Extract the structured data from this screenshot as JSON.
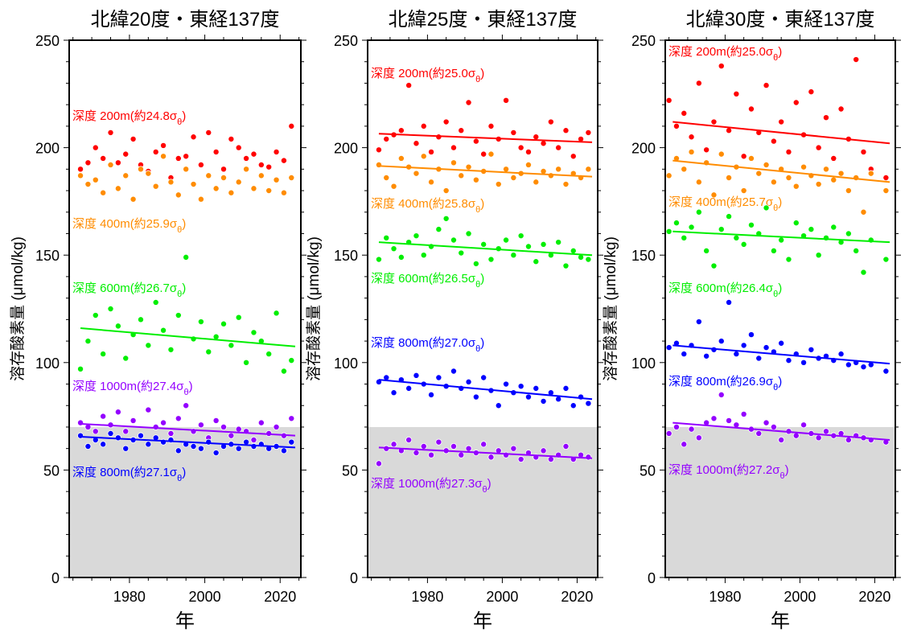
{
  "chart_data": [
    {
      "type": "scatter",
      "title": "北緯20度・東経137度",
      "xlabel": "年",
      "ylabel": "溶存酸素量 (μmol/kg)",
      "xlim": [
        1964,
        2025.5
      ],
      "ylim": [
        0,
        250
      ],
      "xticks": [
        "1980",
        "2000",
        "2020"
      ],
      "yticks": [
        "0",
        "50",
        "100",
        "150",
        "200",
        "250"
      ],
      "shaded_below": 70,
      "x": [
        1967,
        1969,
        1971,
        1973,
        1975,
        1977,
        1979,
        1981,
        1983,
        1985,
        1987,
        1989,
        1991,
        1993,
        1995,
        1997,
        1999,
        2001,
        2003,
        2005,
        2007,
        2009,
        2011,
        2013,
        2015,
        2017,
        2019,
        2021,
        2023
      ],
      "series": [
        {
          "label_pre": "深度 200m(約24.8σ",
          "label_sub": "θ",
          "label_post": ")",
          "color": "#ff0000",
          "values": [
            190,
            193,
            200,
            195,
            207,
            193,
            197,
            204,
            192,
            189,
            198,
            201,
            186,
            195,
            196,
            205,
            192,
            207,
            198,
            190,
            204,
            200,
            195,
            197,
            192,
            191,
            198,
            194,
            210
          ],
          "trend": null
        },
        {
          "label_pre": "深度 400m(約25.9σ",
          "label_sub": "θ",
          "label_post": ")",
          "color": "#ff8c00",
          "values": [
            187,
            183,
            185,
            179,
            192,
            181,
            187,
            176,
            190,
            188,
            182,
            196,
            184,
            178,
            190,
            183,
            176,
            187,
            181,
            186,
            179,
            184,
            190,
            181,
            187,
            180,
            185,
            179,
            186
          ],
          "trend": null
        },
        {
          "label_pre": "深度 600m(約26.7σ",
          "label_sub": "θ",
          "label_post": ")",
          "color": "#00ee00",
          "values": [
            97,
            110,
            122,
            104,
            125,
            117,
            102,
            113,
            120,
            108,
            128,
            115,
            106,
            122,
            149,
            111,
            119,
            105,
            112,
            118,
            108,
            121,
            100,
            114,
            110,
            104,
            123,
            96,
            101
          ],
          "trend": [
            1967,
            116,
            2024,
            107.5
          ]
        },
        {
          "label_pre": "深度 1000m(約27.4σ",
          "label_sub": "θ",
          "label_post": ")",
          "color": "#9400ff",
          "values": [
            72,
            70,
            68,
            75,
            71,
            77,
            68,
            73,
            66,
            78,
            70,
            72,
            67,
            74,
            80,
            68,
            71,
            65,
            73,
            70,
            66,
            69,
            68,
            64,
            72,
            67,
            70,
            66,
            74
          ],
          "trend": [
            1967,
            71.5,
            2024,
            66
          ]
        },
        {
          "label_pre": "深度 800m(約27.1σ",
          "label_sub": "θ",
          "label_post": ")",
          "color": "#0000ff",
          "values": [
            66,
            61,
            64,
            62,
            67,
            65,
            60,
            64,
            66,
            62,
            65,
            63,
            64,
            59,
            62,
            61,
            60,
            63,
            58,
            61,
            62,
            60,
            63,
            61,
            62,
            60,
            61,
            59,
            63
          ],
          "trend": [
            1967,
            65.5,
            2024,
            60.5
          ]
        }
      ]
    },
    {
      "type": "scatter",
      "title": "北緯25度・東経137度",
      "xlabel": "年",
      "ylabel": "溶存酸素量 (μmol/kg)",
      "xlim": [
        1964,
        2025.5
      ],
      "ylim": [
        0,
        250
      ],
      "xticks": [
        "1980",
        "2000",
        "2020"
      ],
      "yticks": [
        "0",
        "50",
        "100",
        "150",
        "200",
        "250"
      ],
      "shaded_below": 70,
      "x": [
        1967,
        1969,
        1971,
        1973,
        1975,
        1977,
        1979,
        1981,
        1983,
        1985,
        1987,
        1989,
        1991,
        1993,
        1995,
        1997,
        1999,
        2001,
        2003,
        2005,
        2007,
        2009,
        2011,
        2013,
        2015,
        2017,
        2019,
        2021,
        2023
      ],
      "series": [
        {
          "label_pre": "深度 200m(約25.0σ",
          "label_sub": "θ",
          "label_post": ")",
          "color": "#ff0000",
          "values": [
            199,
            204,
            206,
            208,
            229,
            202,
            210,
            198,
            205,
            212,
            200,
            208,
            221,
            203,
            197,
            210,
            204,
            222,
            207,
            200,
            198,
            205,
            202,
            212,
            200,
            208,
            196,
            204,
            207
          ],
          "trend": [
            1967,
            206.5,
            2024,
            202.5
          ]
        },
        {
          "label_pre": "深度 400m(約25.8σ",
          "label_sub": "θ",
          "label_post": ")",
          "color": "#ff8c00",
          "values": [
            192,
            186,
            182,
            195,
            191,
            188,
            196,
            184,
            190,
            180,
            193,
            187,
            191,
            185,
            189,
            197,
            183,
            190,
            186,
            188,
            192,
            184,
            189,
            187,
            190,
            183,
            188,
            186,
            190
          ],
          "trend": [
            1967,
            191.5,
            2024,
            186.5
          ]
        },
        {
          "label_pre": "深度 600m(約26.5σ",
          "label_sub": "θ",
          "label_post": ")",
          "color": "#00ee00",
          "values": [
            148,
            158,
            153,
            149,
            156,
            159,
            150,
            154,
            162,
            167,
            157,
            151,
            160,
            146,
            155,
            148,
            153,
            157,
            150,
            159,
            154,
            147,
            155,
            150,
            156,
            145,
            152,
            149,
            148
          ],
          "trend": [
            1967,
            156,
            2024,
            150
          ]
        },
        {
          "label_pre": "深度 800m(約27.0σ",
          "label_sub": "θ",
          "label_post": ")",
          "color": "#0000ff",
          "values": [
            91,
            93,
            86,
            92,
            88,
            94,
            90,
            85,
            93,
            89,
            96,
            88,
            91,
            84,
            93,
            87,
            80,
            90,
            86,
            89,
            84,
            88,
            82,
            86,
            83,
            88,
            80,
            84,
            81
          ],
          "trend": [
            1967,
            92,
            2024,
            83
          ]
        },
        {
          "label_pre": "深度 1000m(約27.3σ",
          "label_sub": "θ",
          "label_post": ")",
          "color": "#9400ff",
          "values": [
            53,
            60,
            62,
            59,
            64,
            58,
            61,
            57,
            63,
            59,
            61,
            57,
            60,
            58,
            62,
            56,
            59,
            57,
            60,
            55,
            58,
            56,
            59,
            55,
            57,
            61,
            55,
            57,
            56
          ],
          "trend": [
            1967,
            60.5,
            2024,
            55.5
          ]
        }
      ]
    },
    {
      "type": "scatter",
      "title": "北緯30度・東経137度",
      "xlabel": "年",
      "ylabel": "溶存酸素量 (μmol/kg)",
      "xlim": [
        1964,
        2025.5
      ],
      "ylim": [
        0,
        250
      ],
      "xticks": [
        "1980",
        "2000",
        "2020"
      ],
      "yticks": [
        "0",
        "50",
        "100",
        "150",
        "200",
        "250"
      ],
      "shaded_below": 70,
      "x": [
        1965,
        1967,
        1969,
        1971,
        1973,
        1975,
        1977,
        1979,
        1981,
        1983,
        1985,
        1987,
        1989,
        1991,
        1993,
        1995,
        1997,
        1999,
        2001,
        2003,
        2005,
        2007,
        2009,
        2011,
        2013,
        2015,
        2017,
        2019,
        2023
      ],
      "series": [
        {
          "label_pre": "深度 200m(約25.0σ",
          "label_sub": "θ",
          "label_post": ")",
          "color": "#ff0000",
          "values": [
            222,
            210,
            216,
            205,
            230,
            199,
            212,
            238,
            208,
            225,
            196,
            218,
            207,
            229,
            203,
            212,
            198,
            221,
            206,
            226,
            200,
            214,
            195,
            218,
            204,
            241,
            198,
            190,
            186
          ],
          "trend": [
            1966,
            212,
            2024,
            202
          ]
        },
        {
          "label_pre": "深度 400m(約25.7σ",
          "label_sub": "θ",
          "label_post": ")",
          "color": "#ff8c00",
          "values": [
            187,
            195,
            190,
            198,
            184,
            193,
            178,
            197,
            186,
            191,
            180,
            195,
            188,
            192,
            184,
            190,
            186,
            182,
            191,
            187,
            183,
            190,
            185,
            188,
            180,
            186,
            170,
            188,
            180
          ],
          "trend": [
            1966,
            194,
            2024,
            184
          ]
        },
        {
          "label_pre": "深度 600m(約26.4σ",
          "label_sub": "θ",
          "label_post": ")",
          "color": "#00ee00",
          "values": [
            161,
            165,
            158,
            163,
            170,
            152,
            145,
            162,
            168,
            158,
            155,
            164,
            160,
            172,
            152,
            157,
            148,
            165,
            159,
            162,
            150,
            158,
            163,
            156,
            160,
            152,
            142,
            157,
            148
          ],
          "trend": [
            1966,
            161,
            2024,
            156
          ]
        },
        {
          "label_pre": "深度 800m(約26.9σ",
          "label_sub": "θ",
          "label_post": ")",
          "color": "#0000ff",
          "values": [
            107,
            109,
            104,
            108,
            119,
            103,
            106,
            110,
            128,
            104,
            108,
            113,
            102,
            107,
            105,
            109,
            101,
            104,
            100,
            106,
            102,
            103,
            101,
            104,
            99,
            100,
            98,
            99,
            96
          ],
          "trend": [
            1966,
            108,
            2024,
            99.5
          ]
        },
        {
          "label_pre": "深度 1000m(約27.2σ",
          "label_sub": "θ",
          "label_post": ")",
          "color": "#9400ff",
          "values": [
            67,
            70,
            62,
            69,
            65,
            72,
            74,
            85,
            73,
            71,
            76,
            69,
            67,
            72,
            70,
            64,
            68,
            66,
            71,
            67,
            65,
            68,
            66,
            67,
            64,
            66,
            65,
            64,
            63
          ],
          "trend": [
            1966,
            72,
            2024,
            64
          ]
        }
      ]
    }
  ]
}
